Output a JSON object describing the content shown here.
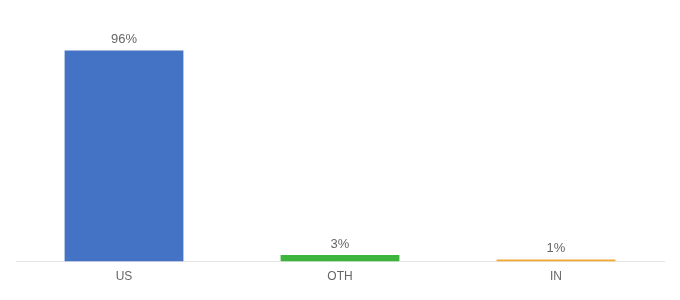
{
  "chart_data": {
    "type": "bar",
    "categories": [
      "US",
      "OTH",
      "IN"
    ],
    "values": [
      96,
      3,
      1
    ],
    "value_labels": [
      "96%",
      "3%",
      "1%"
    ],
    "colors": [
      "#4472c4",
      "#3db53d",
      "#f0a830"
    ],
    "ylim": [
      0,
      108
    ],
    "data_labels": true,
    "tick_labels": "x",
    "grid": false
  }
}
